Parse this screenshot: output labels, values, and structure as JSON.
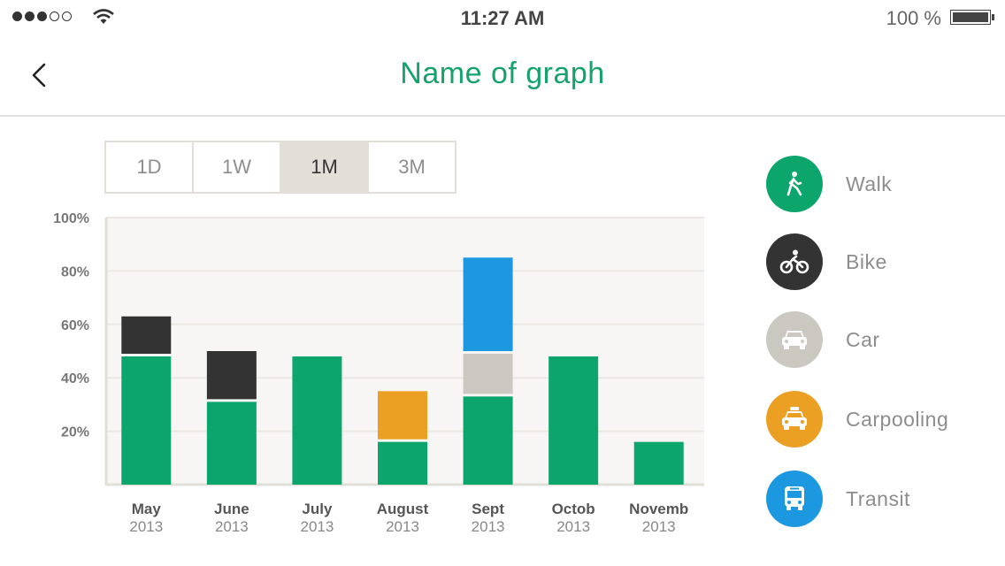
{
  "status_bar": {
    "time": "11:27 AM",
    "battery_text": "100 %",
    "signal_bars_filled": 3,
    "signal_bars_total": 5
  },
  "nav": {
    "title": "Name of graph",
    "back_icon": "chevron-left-icon"
  },
  "range_selector": {
    "options": [
      "1D",
      "1W",
      "1M",
      "3M"
    ],
    "selected": "1M"
  },
  "colors": {
    "walk": "#0ca56c",
    "bike": "#333333",
    "car": "#cbc7c1",
    "carpooling": "#eba024",
    "transit": "#1b98e0",
    "title": "#14a36d"
  },
  "legend": [
    {
      "key": "walk",
      "label": "Walk",
      "icon": "walk-icon"
    },
    {
      "key": "bike",
      "label": "Bike",
      "icon": "bike-icon"
    },
    {
      "key": "car",
      "label": "Car",
      "icon": "car-icon"
    },
    {
      "key": "carpooling",
      "label": "Carpooling",
      "icon": "carpooling-icon"
    },
    {
      "key": "transit",
      "label": "Transit",
      "icon": "transit-icon"
    }
  ],
  "chart_data": {
    "type": "bar",
    "stacked": true,
    "ylim": [
      0,
      100
    ],
    "yticks": [
      "100%",
      "80%",
      "60%",
      "40%",
      "20%"
    ],
    "ytick_values": [
      100,
      80,
      60,
      40,
      20
    ],
    "grid": true,
    "categories": [
      {
        "month": "May",
        "year": "2013"
      },
      {
        "month": "June",
        "year": "2013"
      },
      {
        "month": "July",
        "year": "2013"
      },
      {
        "month": "August",
        "year": "2013"
      },
      {
        "month": "Sept",
        "year": "2013"
      },
      {
        "month": "Octob",
        "year": "2013"
      },
      {
        "month": "Novemb",
        "year": "2013"
      }
    ],
    "series": [
      {
        "name": "Walk",
        "key": "walk",
        "values": [
          48,
          31,
          48,
          16,
          33,
          48,
          16
        ]
      },
      {
        "name": "Bike",
        "key": "bike",
        "values": [
          15,
          19,
          0,
          0,
          0,
          0,
          0
        ]
      },
      {
        "name": "Car",
        "key": "car",
        "values": [
          0,
          0,
          0,
          0,
          16,
          0,
          0
        ]
      },
      {
        "name": "Carpooling",
        "key": "carpooling",
        "values": [
          0,
          0,
          0,
          19,
          0,
          0,
          0
        ]
      },
      {
        "name": "Transit",
        "key": "transit",
        "values": [
          0,
          0,
          0,
          0,
          36,
          0,
          0
        ]
      }
    ]
  }
}
